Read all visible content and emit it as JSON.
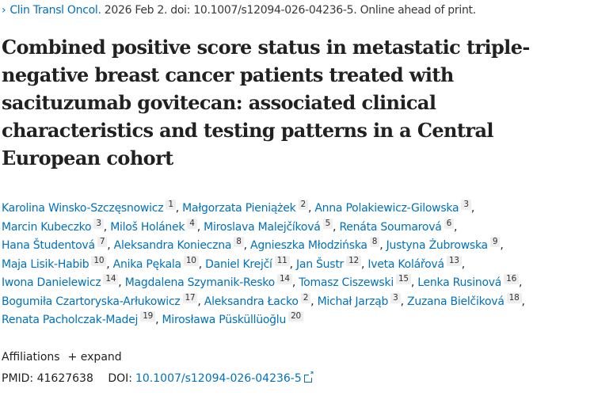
{
  "citation": {
    "journal": "Clin Transl Oncol.",
    "details": "2026 Feb 2. doi: 10.1007/s12094-026-04236-5. Online ahead of print."
  },
  "title_lines": [
    "Combined positive score status in metastatic triple-",
    "negative breast cancer patients treated with",
    "sacituzumab govitecan: associated clinical",
    "characteristics and testing patterns in a Central",
    "European cohort"
  ],
  "author_rows": [
    [
      {
        "name": "Karolina Winsko-Szczęsnowicz",
        "aff": "1"
      },
      {
        "name": "Małgorzata Pieniążek",
        "aff": "2"
      },
      {
        "name": "Anna Polakiewicz-Gilowska",
        "aff": "3"
      }
    ],
    [
      {
        "name": "Marcin Kubeczko",
        "aff": "3"
      },
      {
        "name": "Miloš Holánek",
        "aff": "4"
      },
      {
        "name": "Miroslava Malejčíková",
        "aff": "5"
      },
      {
        "name": "Renáta Soumarová",
        "aff": "6"
      }
    ],
    [
      {
        "name": "Hana Študentová",
        "aff": "7"
      },
      {
        "name": "Aleksandra Konieczna",
        "aff": "8"
      },
      {
        "name": "Agnieszka Młodzińska",
        "aff": "8"
      },
      {
        "name": "Justyna Żubrowska",
        "aff": "9"
      }
    ],
    [
      {
        "name": "Maja Lisik-Habib",
        "aff": "10"
      },
      {
        "name": "Anika Pękala",
        "aff": "10"
      },
      {
        "name": "Daniel Krejčí",
        "aff": "11"
      },
      {
        "name": "Jan Šustr",
        "aff": "12"
      },
      {
        "name": "Iveta Kolářová",
        "aff": "13"
      }
    ],
    [
      {
        "name": "Iwona Danielewicz",
        "aff": "14"
      },
      {
        "name": "Magdalena Szymanik-Resko",
        "aff": "14"
      },
      {
        "name": "Tomasz Ciszewski",
        "aff": "15"
      },
      {
        "name": "Lenka Rusinová",
        "aff": "16"
      }
    ],
    [
      {
        "name": "Bogumiła Czartoryska-Arłukowicz",
        "aff": "17"
      },
      {
        "name": "Aleksandra Łacko",
        "aff": "2"
      },
      {
        "name": "Michał Jarząb",
        "aff": "3"
      },
      {
        "name": "Zuzana Bielčiková",
        "aff": "18"
      }
    ],
    [
      {
        "name": "Renata Pacholczak-Madej",
        "aff": "19"
      },
      {
        "name": "Mirosława Püsküllüoğlu",
        "aff": "20"
      }
    ]
  ],
  "affiliations": {
    "label": "Affiliations",
    "expand": "+ expand"
  },
  "ids": {
    "pmid_label": "PMID:",
    "pmid": "41627638",
    "doi_label": "DOI:",
    "doi": "10.1007/s12094-026-04236-5"
  }
}
